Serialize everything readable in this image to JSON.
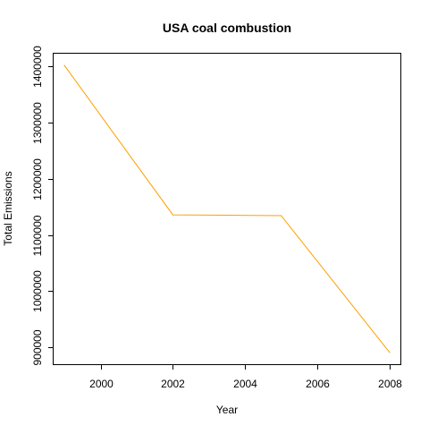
{
  "chart_data": {
    "type": "line",
    "title": "USA coal combustion",
    "xlabel": "Year",
    "ylabel": "Total Emissions",
    "x": [
      1999,
      2002,
      2005,
      2008
    ],
    "series": [
      {
        "values": [
          1402000,
          1136000,
          1134500,
          891000
        ]
      }
    ],
    "xlim": [
      1998.7,
      2008.3
    ],
    "ylim": [
      870000,
      1423000
    ],
    "xticks": [
      2000,
      2002,
      2004,
      2006,
      2008
    ],
    "xtick_labels": [
      "2000",
      "2002",
      "2004",
      "2006",
      "2008"
    ],
    "yticks": [
      900000,
      1000000,
      1100000,
      1200000,
      1300000,
      1400000
    ],
    "ytick_labels": [
      "900000",
      "1000000",
      "1100000",
      "1200000",
      "1300000",
      "1400000"
    ],
    "line_color": "#ff9f00",
    "grid": false,
    "legend": "none"
  }
}
